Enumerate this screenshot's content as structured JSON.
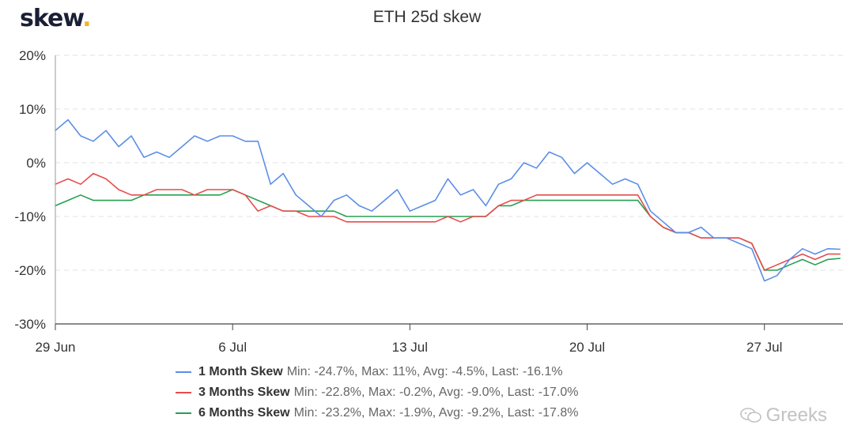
{
  "brand": {
    "name": "skew",
    "dot": "."
  },
  "watermark": {
    "text": "Greeks"
  },
  "colors": {
    "one_month": "#5b8ee6",
    "three_months": "#e84c4c",
    "six_months": "#27a052",
    "grid": "#e0e0e0",
    "axis": "#999999"
  },
  "chart_data": {
    "type": "line",
    "title": "ETH 25d skew",
    "xlabel": "",
    "ylabel": "",
    "x_ticks": [
      "29 Jun",
      "6 Jul",
      "13 Jul",
      "20 Jul",
      "27 Jul"
    ],
    "x_tick_days": [
      0,
      7,
      14,
      21,
      28
    ],
    "x_range_days": [
      0,
      31.1
    ],
    "y_ticks": [
      "20%",
      "10%",
      "0%",
      "-10%",
      "-20%",
      "-30%"
    ],
    "y_tick_values": [
      20,
      10,
      0,
      -10,
      -20,
      -30
    ],
    "ylim": [
      -30,
      20
    ],
    "grid": "horizontal dashed",
    "legend_position": "bottom",
    "series": [
      {
        "name": "1 Month Skew",
        "stats": "Min: -24.7%, Max: 11%, Avg: -4.5%, Last: -16.1%",
        "x": [
          0,
          0.5,
          1,
          1.5,
          2,
          2.5,
          3,
          3.5,
          4,
          4.5,
          5,
          5.5,
          6,
          6.5,
          7,
          7.5,
          8,
          8.5,
          9,
          9.5,
          10,
          10.5,
          11,
          11.5,
          12,
          12.5,
          13,
          13.5,
          14,
          14.5,
          15,
          15.5,
          16,
          16.5,
          17,
          17.5,
          18,
          18.5,
          19,
          19.5,
          20,
          20.5,
          21,
          21.5,
          22,
          22.5,
          23,
          23.5,
          24,
          24.5,
          25,
          25.5,
          26,
          26.5,
          27,
          27.5,
          28,
          28.5,
          29,
          29.5,
          30,
          30.5,
          31
        ],
        "y": [
          6,
          8,
          5,
          4,
          6,
          3,
          5,
          1,
          2,
          1,
          3,
          5,
          4,
          5,
          5,
          4,
          4,
          -4,
          -2,
          -6,
          -8,
          -10,
          -7,
          -6,
          -8,
          -9,
          -7,
          -5,
          -9,
          -8,
          -7,
          -3,
          -6,
          -5,
          -8,
          -4,
          -3,
          0,
          -1,
          2,
          1,
          -2,
          0,
          -2,
          -4,
          -3,
          -4,
          -9,
          -11,
          -13,
          -13,
          -12,
          -14,
          -14,
          -15,
          -16,
          -22,
          -21,
          -18,
          -16,
          -17,
          -16,
          -16.1
        ]
      },
      {
        "name": "3 Months Skew",
        "stats": "Min: -22.8%, Max: -0.2%, Avg: -9.0%, Last: -17.0%",
        "x": [
          0,
          0.5,
          1,
          1.5,
          2,
          2.5,
          3,
          3.5,
          4,
          4.5,
          5,
          5.5,
          6,
          6.5,
          7,
          7.5,
          8,
          8.5,
          9,
          9.5,
          10,
          10.5,
          11,
          11.5,
          12,
          12.5,
          13,
          13.5,
          14,
          14.5,
          15,
          15.5,
          16,
          16.5,
          17,
          17.5,
          18,
          18.5,
          19,
          19.5,
          20,
          20.5,
          21,
          21.5,
          22,
          22.5,
          23,
          23.5,
          24,
          24.5,
          25,
          25.5,
          26,
          26.5,
          27,
          27.5,
          28,
          28.5,
          29,
          29.5,
          30,
          30.5,
          31
        ],
        "y": [
          -4,
          -3,
          -4,
          -2,
          -3,
          -5,
          -6,
          -6,
          -5,
          -5,
          -5,
          -6,
          -5,
          -5,
          -5,
          -6,
          -9,
          -8,
          -9,
          -9,
          -10,
          -10,
          -10,
          -11,
          -11,
          -11,
          -11,
          -11,
          -11,
          -11,
          -11,
          -10,
          -11,
          -10,
          -10,
          -8,
          -7,
          -7,
          -6,
          -6,
          -6,
          -6,
          -6,
          -6,
          -6,
          -6,
          -6,
          -10,
          -12,
          -13,
          -13,
          -14,
          -14,
          -14,
          -14,
          -15,
          -20,
          -19,
          -18,
          -17,
          -18,
          -17,
          -17
        ]
      },
      {
        "name": "6 Months Skew",
        "stats": "Min: -23.2%, Max: -1.9%, Avg: -9.2%, Last: -17.8%",
        "x": [
          0,
          0.5,
          1,
          1.5,
          2,
          2.5,
          3,
          3.5,
          4,
          4.5,
          5,
          5.5,
          6,
          6.5,
          7,
          7.5,
          8,
          8.5,
          9,
          9.5,
          10,
          10.5,
          11,
          11.5,
          12,
          12.5,
          13,
          13.5,
          14,
          14.5,
          15,
          15.5,
          16,
          16.5,
          17,
          17.5,
          18,
          18.5,
          19,
          19.5,
          20,
          20.5,
          21,
          21.5,
          22,
          22.5,
          23,
          23.5,
          24,
          24.5,
          25,
          25.5,
          26,
          26.5,
          27,
          27.5,
          28,
          28.5,
          29,
          29.5,
          30,
          30.5,
          31
        ],
        "y": [
          -8,
          -7,
          -6,
          -7,
          -7,
          -7,
          -7,
          -6,
          -6,
          -6,
          -6,
          -6,
          -6,
          -6,
          -5,
          -6,
          -7,
          -8,
          -9,
          -9,
          -9,
          -9,
          -9,
          -10,
          -10,
          -10,
          -10,
          -10,
          -10,
          -10,
          -10,
          -10,
          -10,
          -10,
          -10,
          -8,
          -8,
          -7,
          -7,
          -7,
          -7,
          -7,
          -7,
          -7,
          -7,
          -7,
          -7,
          -10,
          -12,
          -13,
          -13,
          -14,
          -14,
          -14,
          -14,
          -15,
          -20,
          -20,
          -19,
          -18,
          -19,
          -18,
          -17.8
        ]
      }
    ]
  }
}
